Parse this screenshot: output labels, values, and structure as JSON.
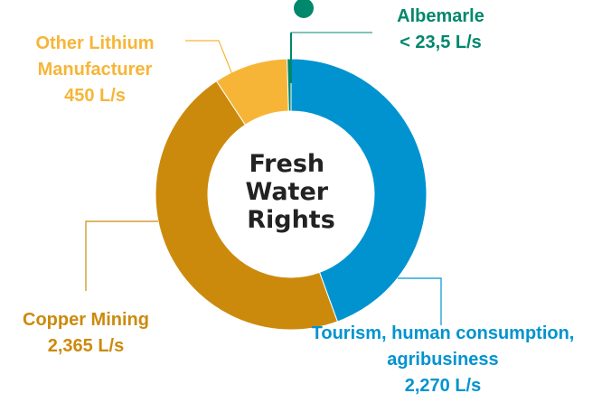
{
  "chart_data": {
    "type": "donut",
    "center_label": [
      "Fresh",
      "Water",
      "Rights"
    ],
    "categories": [
      "Tourism, human consumption, agribusiness",
      "Copper Mining",
      "Other Lithium Manufacturer",
      "Albemarle"
    ],
    "values": [
      2270,
      2365,
      450,
      23.5
    ],
    "value_labels": [
      "2,270 L/s",
      "2,365 L/s",
      "450 L/s",
      "< 23,5 L/s"
    ],
    "colors": [
      "#0093d0",
      "#cc8a0c",
      "#f7b538",
      "#00876c"
    ]
  }
}
